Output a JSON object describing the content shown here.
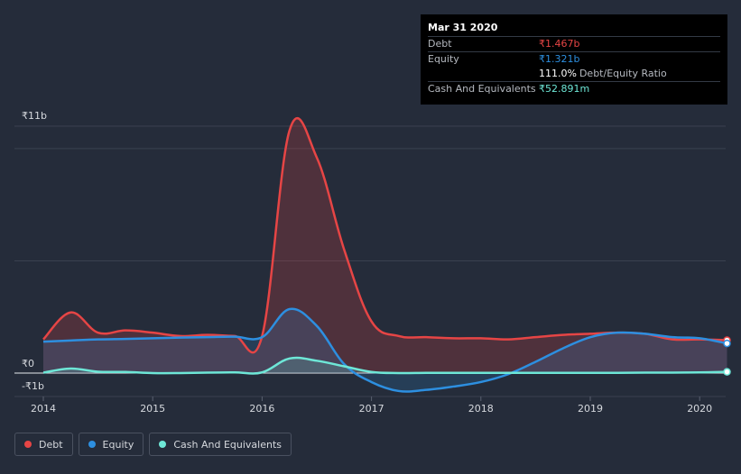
{
  "tooltip": {
    "date": "Mar 31 2020",
    "debt_label": "Debt",
    "debt_value": "₹1.467b",
    "equity_label": "Equity",
    "equity_value": "₹1.321b",
    "ratio_value": "111.0%",
    "ratio_label": "Debt/Equity Ratio",
    "cash_label": "Cash And Equivalents",
    "cash_value": "₹52.891m"
  },
  "legend": {
    "debt": "Debt",
    "equity": "Equity",
    "cash": "Cash And Equivalents"
  },
  "colors": {
    "background": "#252c3a",
    "debt": "#e64545",
    "equity": "#2d8fe0",
    "cash": "#6ee7d7",
    "grid": "#3a4150"
  },
  "chart_data": {
    "type": "area",
    "title": "",
    "xlabel": "",
    "ylabel": "",
    "y_unit": "₹b",
    "ylim": [
      -1,
      11
    ],
    "y_tick_labels": [
      "₹11b",
      "₹0",
      "-₹1b"
    ],
    "x_ticks": [
      2014,
      2015,
      2016,
      2017,
      2018,
      2019,
      2020
    ],
    "x_tick_labels": [
      "2014",
      "2015",
      "2016",
      "2017",
      "2018",
      "2019",
      "2020"
    ],
    "xlim": [
      2014,
      2020.25
    ],
    "series": [
      {
        "name": "Debt",
        "color": "#e64545",
        "points": [
          [
            2014.0,
            1.5
          ],
          [
            2014.25,
            2.7
          ],
          [
            2014.5,
            1.8
          ],
          [
            2014.75,
            1.9
          ],
          [
            2015.0,
            1.8
          ],
          [
            2015.25,
            1.65
          ],
          [
            2015.5,
            1.7
          ],
          [
            2015.75,
            1.65
          ],
          [
            2016.0,
            1.65
          ],
          [
            2016.25,
            10.8
          ],
          [
            2016.5,
            9.6
          ],
          [
            2016.75,
            5.5
          ],
          [
            2017.0,
            2.3
          ],
          [
            2017.25,
            1.65
          ],
          [
            2017.5,
            1.6
          ],
          [
            2017.75,
            1.55
          ],
          [
            2018.0,
            1.55
          ],
          [
            2018.25,
            1.5
          ],
          [
            2018.5,
            1.6
          ],
          [
            2018.75,
            1.7
          ],
          [
            2019.0,
            1.75
          ],
          [
            2019.25,
            1.8
          ],
          [
            2019.5,
            1.75
          ],
          [
            2019.75,
            1.5
          ],
          [
            2020.0,
            1.5
          ],
          [
            2020.25,
            1.467
          ]
        ]
      },
      {
        "name": "Equity",
        "color": "#2d8fe0",
        "points": [
          [
            2014.0,
            1.4
          ],
          [
            2014.25,
            1.45
          ],
          [
            2014.5,
            1.5
          ],
          [
            2014.75,
            1.52
          ],
          [
            2015.0,
            1.55
          ],
          [
            2015.25,
            1.58
          ],
          [
            2015.5,
            1.6
          ],
          [
            2015.75,
            1.62
          ],
          [
            2016.0,
            1.6
          ],
          [
            2016.25,
            2.85
          ],
          [
            2016.5,
            2.1
          ],
          [
            2016.75,
            0.4
          ],
          [
            2017.0,
            -0.4
          ],
          [
            2017.25,
            -0.8
          ],
          [
            2017.5,
            -0.75
          ],
          [
            2017.75,
            -0.6
          ],
          [
            2018.0,
            -0.4
          ],
          [
            2018.25,
            -0.05
          ],
          [
            2018.5,
            0.5
          ],
          [
            2018.75,
            1.1
          ],
          [
            2019.0,
            1.6
          ],
          [
            2019.25,
            1.8
          ],
          [
            2019.5,
            1.75
          ],
          [
            2019.75,
            1.6
          ],
          [
            2020.0,
            1.55
          ],
          [
            2020.25,
            1.321
          ]
        ]
      },
      {
        "name": "Cash And Equivalents",
        "color": "#6ee7d7",
        "points": [
          [
            2014.0,
            0.02
          ],
          [
            2014.25,
            0.2
          ],
          [
            2014.5,
            0.06
          ],
          [
            2014.75,
            0.05
          ],
          [
            2015.0,
            0.0
          ],
          [
            2015.25,
            0.0
          ],
          [
            2015.5,
            0.02
          ],
          [
            2015.75,
            0.03
          ],
          [
            2016.0,
            0.03
          ],
          [
            2016.25,
            0.65
          ],
          [
            2016.5,
            0.55
          ],
          [
            2016.75,
            0.3
          ],
          [
            2017.0,
            0.05
          ],
          [
            2017.25,
            0.0
          ],
          [
            2017.5,
            0.01
          ],
          [
            2017.75,
            0.01
          ],
          [
            2018.0,
            0.01
          ],
          [
            2018.25,
            0.01
          ],
          [
            2018.5,
            0.01
          ],
          [
            2018.75,
            0.01
          ],
          [
            2019.0,
            0.01
          ],
          [
            2019.25,
            0.01
          ],
          [
            2019.5,
            0.02
          ],
          [
            2019.75,
            0.02
          ],
          [
            2020.0,
            0.03
          ],
          [
            2020.25,
            0.053
          ]
        ]
      }
    ],
    "grid": true,
    "legend_position": "bottom-left"
  }
}
